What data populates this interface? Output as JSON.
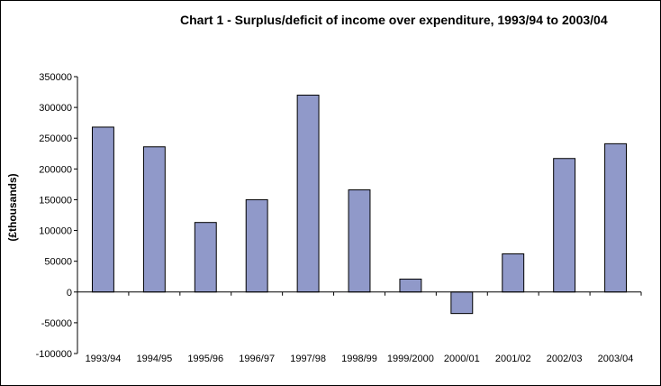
{
  "chart_data": {
    "type": "bar",
    "title": "Chart 1 - Surplus/deficit of income over expenditure, 1993/94 to 2003/04",
    "xlabel": "",
    "ylabel": "(£thousands)",
    "categories": [
      "1993/94",
      "1994/95",
      "1995/96",
      "1996/97",
      "1997/98",
      "1998/99",
      "1999/2000",
      "2000/01",
      "2001/02",
      "2002/03",
      "2003/04"
    ],
    "values": [
      268000,
      236000,
      113000,
      150000,
      320000,
      166000,
      21000,
      -35000,
      62000,
      217000,
      241000
    ],
    "ylim": [
      -100000,
      350000
    ],
    "yticks": [
      350000,
      300000,
      250000,
      200000,
      150000,
      100000,
      50000,
      0,
      -50000,
      -100000
    ],
    "grid": false,
    "legend": "none",
    "bar_color": "#9099C9"
  }
}
